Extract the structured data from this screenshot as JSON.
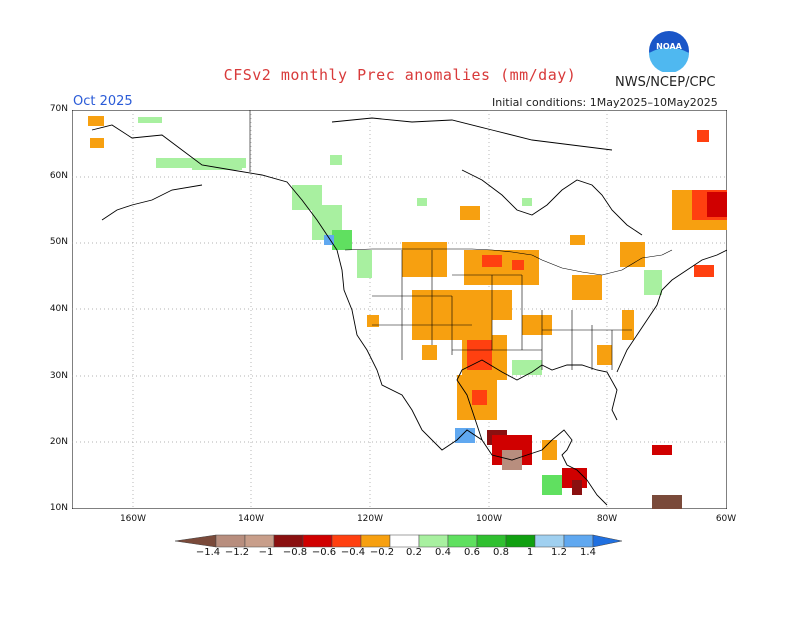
{
  "title": "CFSv2 monthly Prec anomalies (mm/day)",
  "org": "NWS/NCEP/CPC",
  "logo_text": "NOAA",
  "month": "Oct 2025",
  "init": "Initial conditions:  1May2025–10May2025",
  "lat_labels": [
    "70N",
    "60N",
    "50N",
    "40N",
    "30N",
    "20N",
    "10N"
  ],
  "lon_labels": [
    "160W",
    "140W",
    "120W",
    "100W",
    "80W",
    "60W"
  ],
  "legend": {
    "labels": [
      "−1.4",
      "−1.2",
      "−1",
      "−0.8",
      "−0.6",
      "−0.4",
      "−0.2",
      "0.2",
      "0.4",
      "0.6",
      "0.8",
      "1",
      "1.2",
      "1.4"
    ],
    "colors": [
      "#7a4a3a",
      "#b88e7e",
      "#c89e8a",
      "#8a1010",
      "#d00000",
      "#ff4010",
      "#f7a010",
      "#ffffff",
      "#a8f0a0",
      "#60e060",
      "#30c030",
      "#10a010",
      "#a0d0f0",
      "#60a8f0",
      "#2070e0"
    ]
  },
  "colors": {
    "dry_light": "#f7a010",
    "dry_med": "#ff4010",
    "dry_strong": "#d00000",
    "dry_vstrong": "#8a1010",
    "wet_light": "#a8f0a0",
    "wet_med": "#60e060",
    "wet_blue": "#60a8f0"
  }
}
